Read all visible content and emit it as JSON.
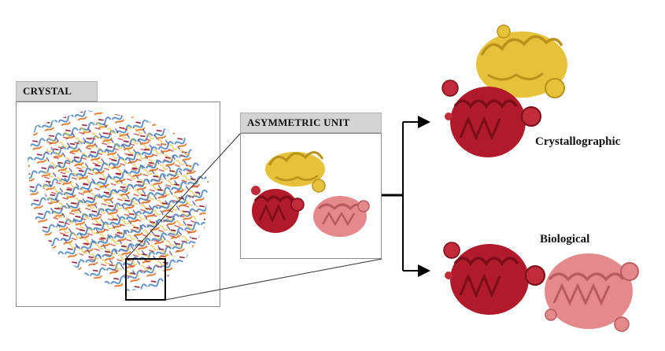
{
  "panels": {
    "crystal": {
      "title": "CRYSTAL"
    },
    "asymmetric_unit": {
      "title": "ASYMMETRIC UNIT"
    }
  },
  "outputs": {
    "crystallographic": {
      "label": "Crystallographic"
    },
    "biological": {
      "label": "Biological"
    }
  },
  "colors": {
    "chain_a": "#b01a2a",
    "chain_b": "#e6c23a",
    "chain_c": "#e58a8c",
    "lattice_blue": "#5a8fc0",
    "lattice_orange": "#e07a30",
    "frame": "#8a8a8a",
    "tab_fill": "#d4d4d4",
    "arrow": "#000000"
  },
  "icons": {
    "crystal_image": "protein-crystal-lattice-icon",
    "asu_image": "three-chain-protein-icon",
    "crystallographic_image": "two-chain-protein-icon",
    "biological_image": "dimer-protein-icon"
  }
}
